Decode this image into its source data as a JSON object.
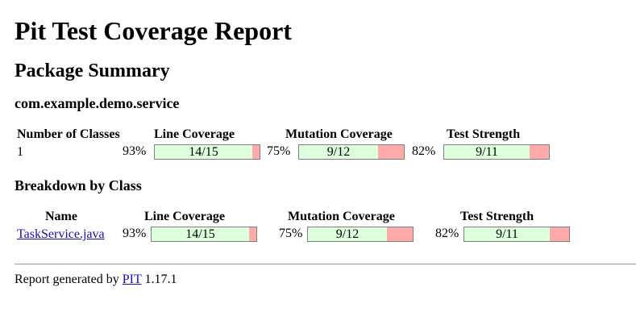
{
  "title": "Pit Test Coverage Report",
  "package_summary": {
    "heading": "Package Summary",
    "package_name": "com.example.demo.service",
    "headers": {
      "num_classes": "Number of Classes",
      "line_coverage": "Line Coverage",
      "mutation_coverage": "Mutation Coverage",
      "test_strength": "Test Strength"
    },
    "num_classes": "1",
    "line_coverage": {
      "percent": "93%",
      "fraction": "14/15",
      "ratio": 0.933
    },
    "mutation_coverage": {
      "percent": "75%",
      "fraction": "9/12",
      "ratio": 0.75
    },
    "test_strength": {
      "percent": "82%",
      "fraction": "9/11",
      "ratio": 0.818
    }
  },
  "breakdown": {
    "heading": "Breakdown by Class",
    "headers": {
      "name": "Name",
      "line_coverage": "Line Coverage",
      "mutation_coverage": "Mutation Coverage",
      "test_strength": "Test Strength"
    },
    "rows": [
      {
        "name": "TaskService.java",
        "line_coverage": {
          "percent": "93%",
          "fraction": "14/15",
          "ratio": 0.933
        },
        "mutation_coverage": {
          "percent": "75%",
          "fraction": "9/12",
          "ratio": 0.75
        },
        "test_strength": {
          "percent": "82%",
          "fraction": "9/11",
          "ratio": 0.818
        }
      }
    ]
  },
  "footer": {
    "prefix": "Report generated by",
    "link_text": "PIT",
    "version": "1.17.1"
  },
  "colors": {
    "covered": "#ddffdd",
    "uncovered": "#ffaaaa",
    "link": "#1a0dab"
  }
}
